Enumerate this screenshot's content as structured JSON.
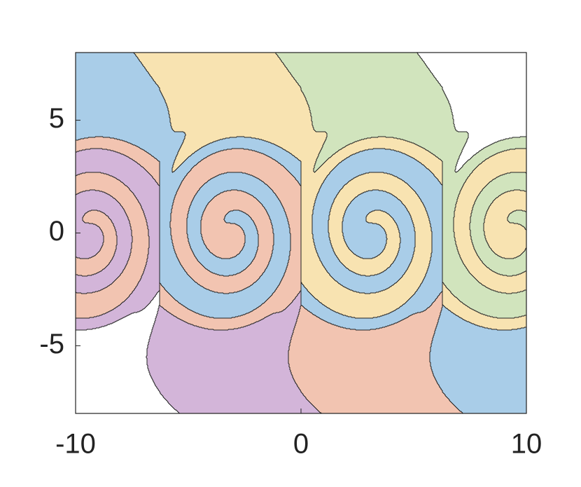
{
  "chart_data": {
    "type": "contour",
    "xlim": [
      -10,
      10
    ],
    "ylim": [
      -8,
      8
    ],
    "xticks": [
      -10,
      0,
      10
    ],
    "yticks": [
      -5,
      0,
      5
    ],
    "colors": [
      "#d3b5d9",
      "#f2c4b1",
      "#a9cde8",
      "#f8e3b1",
      "#d1e4bd"
    ]
  }
}
